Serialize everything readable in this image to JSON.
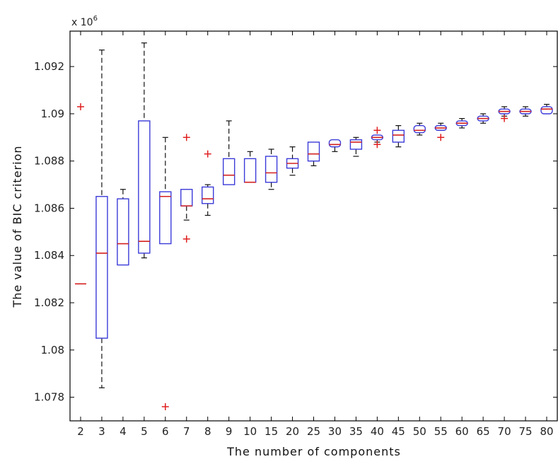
{
  "chart_data": {
    "type": "boxplot",
    "xlabel": "The number of components",
    "ylabel": "The value of BIC criterion",
    "y_exponent_label": "x 10",
    "y_exponent": "6",
    "ylim": [
      1.077,
      1.0935
    ],
    "y_scale": 1000000,
    "yticks": [
      "1.078",
      "1.08",
      "1.082",
      "1.084",
      "1.086",
      "1.088",
      "1.09",
      "1.092"
    ],
    "categories": [
      "2",
      "3",
      "4",
      "5",
      "6",
      "7",
      "8",
      "9",
      "10",
      "15",
      "20",
      "25",
      "30",
      "35",
      "40",
      "45",
      "50",
      "55",
      "60",
      "65",
      "70",
      "75",
      "80"
    ],
    "boxes": [
      {
        "label": "2",
        "q1": 1.0828,
        "median": 1.0828,
        "q3": 1.0828,
        "whisker_low": 1.0828,
        "whisker_high": 1.0828,
        "outliers": [
          1.0903
        ]
      },
      {
        "label": "3",
        "q1": 1.0805,
        "median": 1.0841,
        "q3": 1.0865,
        "whisker_low": 1.0784,
        "whisker_high": 1.0927,
        "outliers": []
      },
      {
        "label": "4",
        "q1": 1.0836,
        "median": 1.0845,
        "q3": 1.0864,
        "whisker_low": 1.0836,
        "whisker_high": 1.0868,
        "outliers": []
      },
      {
        "label": "5",
        "q1": 1.0841,
        "median": 1.0846,
        "q3": 1.0897,
        "whisker_low": 1.0839,
        "whisker_high": 1.093,
        "outliers": []
      },
      {
        "label": "6",
        "q1": 1.0845,
        "median": 1.0865,
        "q3": 1.0867,
        "whisker_low": 1.0845,
        "whisker_high": 1.089,
        "outliers": [
          1.0776
        ]
      },
      {
        "label": "7",
        "q1": 1.0861,
        "median": 1.0861,
        "q3": 1.0868,
        "whisker_low": 1.0855,
        "whisker_high": 1.0868,
        "outliers": [
          1.089,
          1.0847
        ]
      },
      {
        "label": "8",
        "q1": 1.0862,
        "median": 1.0864,
        "q3": 1.0869,
        "whisker_low": 1.0857,
        "whisker_high": 1.087,
        "outliers": [
          1.0883
        ]
      },
      {
        "label": "9",
        "q1": 1.087,
        "median": 1.0874,
        "q3": 1.0881,
        "whisker_low": 1.087,
        "whisker_high": 1.0897,
        "outliers": []
      },
      {
        "label": "10",
        "q1": 1.0871,
        "median": 1.0871,
        "q3": 1.0881,
        "whisker_low": 1.0871,
        "whisker_high": 1.0884,
        "outliers": []
      },
      {
        "label": "15",
        "q1": 1.0871,
        "median": 1.0875,
        "q3": 1.0882,
        "whisker_low": 1.0868,
        "whisker_high": 1.0885,
        "outliers": []
      },
      {
        "label": "20",
        "q1": 1.0877,
        "median": 1.0879,
        "q3": 1.0881,
        "whisker_low": 1.0874,
        "whisker_high": 1.0886,
        "outliers": []
      },
      {
        "label": "25",
        "q1": 1.088,
        "median": 1.0883,
        "q3": 1.0888,
        "whisker_low": 1.0878,
        "whisker_high": 1.0888,
        "outliers": []
      },
      {
        "label": "30",
        "q1": 1.0886,
        "median": 1.0887,
        "q3": 1.0889,
        "whisker_low": 1.0884,
        "whisker_high": 1.0889,
        "outliers": []
      },
      {
        "label": "35",
        "q1": 1.0885,
        "median": 1.0888,
        "q3": 1.0889,
        "whisker_low": 1.0882,
        "whisker_high": 1.089,
        "outliers": []
      },
      {
        "label": "40",
        "q1": 1.0889,
        "median": 1.089,
        "q3": 1.0891,
        "whisker_low": 1.0888,
        "whisker_high": 1.0891,
        "outliers": [
          1.0893,
          1.0887
        ]
      },
      {
        "label": "45",
        "q1": 1.0888,
        "median": 1.0891,
        "q3": 1.0893,
        "whisker_low": 1.0886,
        "whisker_high": 1.0895,
        "outliers": []
      },
      {
        "label": "50",
        "q1": 1.0892,
        "median": 1.0893,
        "q3": 1.0895,
        "whisker_low": 1.0891,
        "whisker_high": 1.0896,
        "outliers": []
      },
      {
        "label": "55",
        "q1": 1.0893,
        "median": 1.0894,
        "q3": 1.0895,
        "whisker_low": 1.0893,
        "whisker_high": 1.0896,
        "outliers": [
          1.089
        ]
      },
      {
        "label": "60",
        "q1": 1.0895,
        "median": 1.0896,
        "q3": 1.0897,
        "whisker_low": 1.0894,
        "whisker_high": 1.0898,
        "outliers": []
      },
      {
        "label": "65",
        "q1": 1.0897,
        "median": 1.0898,
        "q3": 1.0899,
        "whisker_low": 1.0896,
        "whisker_high": 1.09,
        "outliers": []
      },
      {
        "label": "70",
        "q1": 1.09,
        "median": 1.0901,
        "q3": 1.0902,
        "whisker_low": 1.0899,
        "whisker_high": 1.0903,
        "outliers": [
          1.0898
        ]
      },
      {
        "label": "75",
        "q1": 1.09,
        "median": 1.0901,
        "q3": 1.0902,
        "whisker_low": 1.0899,
        "whisker_high": 1.0903,
        "outliers": []
      },
      {
        "label": "80",
        "q1": 1.09,
        "median": 1.0902,
        "q3": 1.0903,
        "whisker_low": 1.09,
        "whisker_high": 1.0904,
        "outliers": []
      }
    ],
    "colors": {
      "box": "#3b3bd9",
      "median": "#d42020",
      "whisker": "#111111",
      "outlier": "#e02020",
      "axes": "#000000"
    },
    "grid": false
  }
}
